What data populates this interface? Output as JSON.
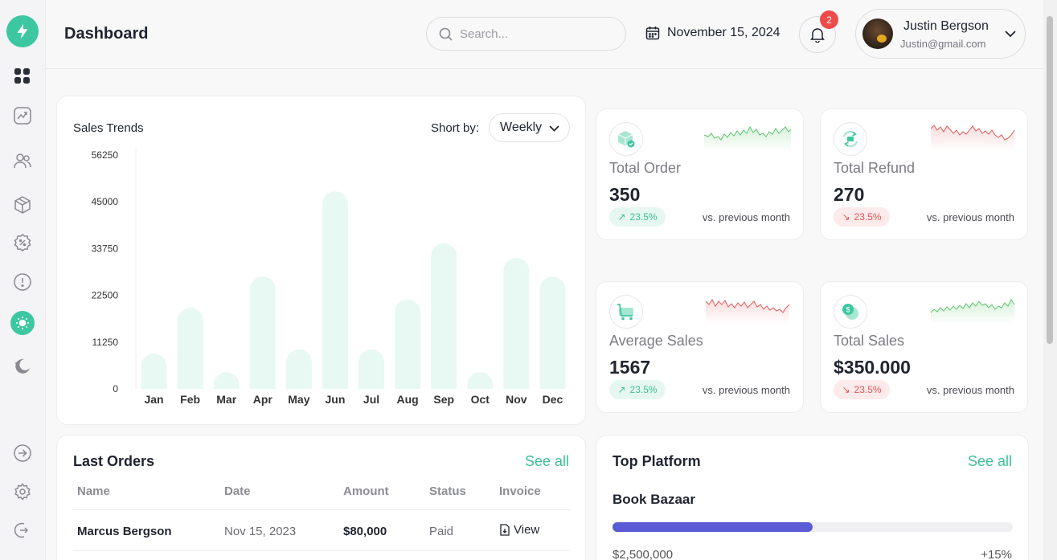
{
  "header": {
    "title": "Dashboard",
    "search_placeholder": "Search...",
    "date": "November 15, 2024",
    "notification_count": "2",
    "user_name": "Justin Bergson",
    "user_email": "Justin@gmail.com"
  },
  "sidebar": {
    "items": [
      {
        "icon": "dashboard-grid-icon"
      },
      {
        "icon": "trend-chart-icon"
      },
      {
        "icon": "users-icon"
      },
      {
        "icon": "box-icon"
      },
      {
        "icon": "discount-badge-icon"
      },
      {
        "icon": "alert-icon"
      },
      {
        "icon": "sun-icon"
      },
      {
        "icon": "moon-icon"
      }
    ],
    "bottom": [
      {
        "icon": "arrow-right-circle-icon"
      },
      {
        "icon": "settings-icon"
      },
      {
        "icon": "logout-icon"
      }
    ]
  },
  "sales": {
    "title": "Sales Trends",
    "sort_label": "Short by:",
    "sort_value": "Weekly"
  },
  "chart_data": {
    "type": "bar",
    "title": "Sales Trends",
    "categories": [
      "Jan",
      "Feb",
      "Mar",
      "Apr",
      "May",
      "Jun",
      "Jul",
      "Aug",
      "Sep",
      "Oct",
      "Nov",
      "Dec"
    ],
    "values": [
      8500,
      19500,
      4000,
      27000,
      9500,
      47500,
      9500,
      21500,
      35000,
      4000,
      31500,
      27000
    ],
    "y_ticks": [
      0,
      11250,
      22500,
      33750,
      45000,
      56250
    ],
    "ylim": [
      0,
      56250
    ],
    "bar_color": "#e8f8f3",
    "grid": false
  },
  "stats": [
    {
      "label": "Total Order",
      "value": "350",
      "change": "23.5%",
      "trend": "up",
      "compare": "vs. previous month",
      "icon": "box-check-icon",
      "spark_color": "#5cc46a"
    },
    {
      "label": "Total Refund",
      "value": "270",
      "change": "23.5%",
      "trend": "down",
      "compare": "vs. previous month",
      "icon": "refund-icon",
      "spark_color": "#e05a5a"
    },
    {
      "label": "Average Sales",
      "value": "1567",
      "change": "23.5%",
      "trend": "up",
      "compare": "vs. previous month",
      "icon": "cart-icon",
      "spark_color": "#e05a5a"
    },
    {
      "label": "Total Sales",
      "value": "$350.000",
      "change": "23.5%",
      "trend": "down",
      "compare": "vs. previous month",
      "icon": "coins-icon",
      "spark_color": "#5cc46a"
    }
  ],
  "orders": {
    "title": "Last Orders",
    "see_all": "See all",
    "columns": [
      "Name",
      "Date",
      "Amount",
      "Status",
      "Invoice"
    ],
    "rows": [
      {
        "name": "Marcus Bergson",
        "date": "Nov 15, 2023",
        "amount": "$80,000",
        "status": "Paid",
        "invoice": "View"
      }
    ]
  },
  "platform": {
    "title": "Top Platform",
    "see_all": "See all",
    "items": [
      {
        "name": "Book Bazaar",
        "amount": "$2,500,000",
        "change": "+15%",
        "progress": 0.5
      }
    ]
  },
  "colors": {
    "accent": "#3cc7a0",
    "progress": "#5b5bd6",
    "negative": "#e25555"
  }
}
